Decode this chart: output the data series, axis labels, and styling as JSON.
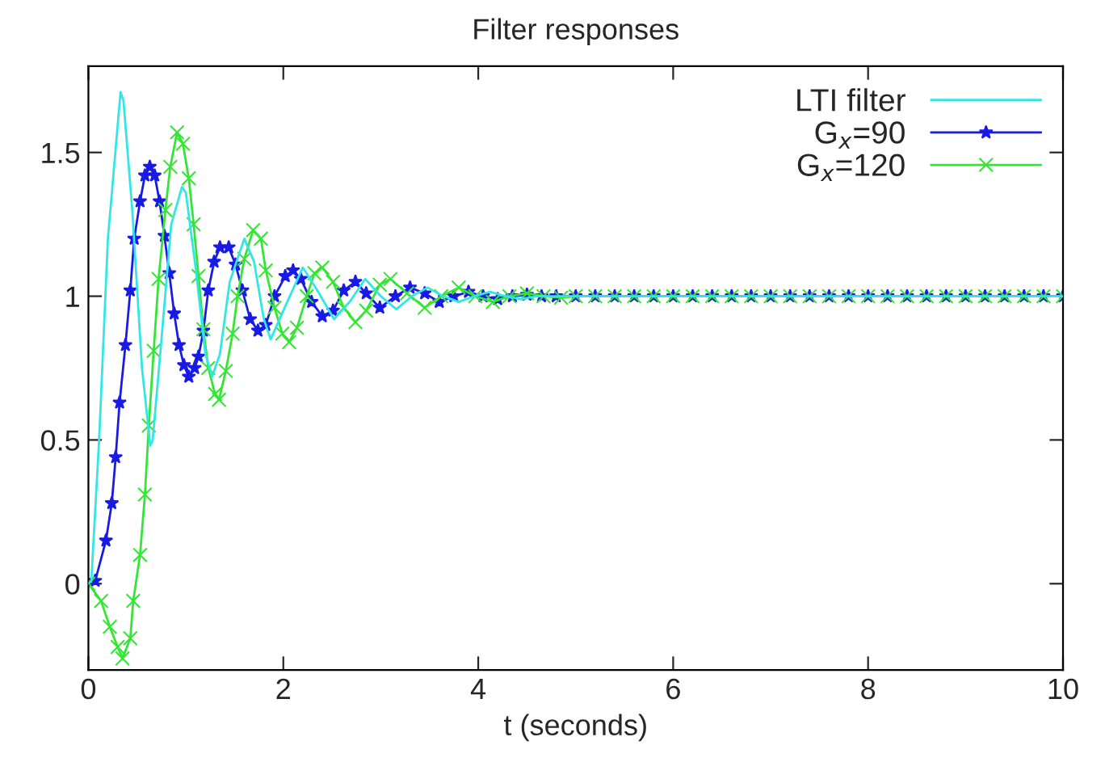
{
  "chart_data": {
    "type": "line",
    "title": "Filter responses",
    "xlabel": "t (seconds)",
    "xlim": [
      0,
      10
    ],
    "xticks": [
      0,
      2,
      4,
      6,
      8,
      10
    ],
    "ylim": [
      -0.3,
      1.8
    ],
    "yticks": [
      0,
      0.5,
      1,
      1.5
    ],
    "grid": false,
    "legend": "top right",
    "series": [
      {
        "name": "LTI filter",
        "color": "#33e6e6",
        "marker": "none",
        "x": [
          0,
          0.03,
          0.11,
          0.2,
          0.33,
          0.36,
          0.45,
          0.55,
          0.635,
          0.66,
          0.75,
          0.85,
          0.96,
          1.0,
          1.1,
          1.2,
          1.27,
          1.35,
          1.45,
          1.6,
          1.7,
          1.8,
          1.87,
          2.0,
          2.2,
          2.35,
          2.52,
          2.68,
          2.84,
          3.0,
          3.16,
          3.32,
          3.48,
          3.64,
          3.8,
          3.96,
          4.12,
          4.28,
          4.44,
          4.6,
          5,
          6,
          7,
          8,
          9,
          10
        ],
        "values": [
          0,
          0.01,
          0.5,
          1.2,
          1.71,
          1.68,
          1.3,
          0.75,
          0.48,
          0.5,
          0.85,
          1.25,
          1.38,
          1.36,
          1.1,
          0.8,
          0.72,
          0.8,
          1.05,
          1.2,
          1.12,
          0.92,
          0.85,
          0.95,
          1.1,
          1.02,
          0.92,
          0.98,
          1.06,
          1.0,
          0.955,
          1.0,
          1.03,
          1.0,
          0.98,
          1.0,
          1.015,
          1.0,
          0.99,
          1.0,
          1.0,
          1.0,
          1.0,
          1.0,
          1.0,
          1.0
        ]
      },
      {
        "name": "G$_{x}$=90",
        "color": "#1a1ae6",
        "marker": "star",
        "x": [
          0.07,
          0.18,
          0.24,
          0.28,
          0.32,
          0.38,
          0.43,
          0.47,
          0.53,
          0.58,
          0.63,
          0.68,
          0.73,
          0.78,
          0.83,
          0.88,
          0.93,
          0.98,
          1.03,
          1.09,
          1.13,
          1.18,
          1.23,
          1.29,
          1.35,
          1.44,
          1.51,
          1.58,
          1.66,
          1.74,
          1.82,
          1.91,
          2.02,
          2.1,
          2.18,
          2.29,
          2.4,
          2.51,
          2.62,
          2.74,
          2.85,
          2.99,
          3.15,
          3.3,
          3.45,
          3.6,
          3.75,
          3.9,
          4.05,
          4.2,
          4.35,
          4.5,
          4.65,
          4.8,
          5.0,
          5.2,
          5.4,
          5.6,
          5.8,
          6.0,
          6.2,
          6.4,
          6.6,
          6.8,
          7.0,
          7.2,
          7.4,
          7.6,
          7.8,
          8.0,
          8.2,
          8.4,
          8.6,
          8.8,
          9.0,
          9.2,
          9.4,
          9.6,
          9.8,
          10.0
        ],
        "values": [
          0.01,
          0.15,
          0.28,
          0.44,
          0.63,
          0.83,
          1.02,
          1.2,
          1.33,
          1.42,
          1.45,
          1.42,
          1.33,
          1.21,
          1.08,
          0.94,
          0.83,
          0.76,
          0.72,
          0.75,
          0.79,
          0.88,
          1.02,
          1.12,
          1.17,
          1.17,
          1.11,
          1.02,
          0.92,
          0.88,
          0.9,
          1.0,
          1.07,
          1.09,
          1.06,
          0.98,
          0.93,
          0.95,
          1.02,
          1.05,
          1.01,
          0.96,
          1.0,
          1.03,
          1.01,
          0.98,
          1.0,
          1.015,
          1.0,
          0.99,
          1.0,
          1.005,
          1.0,
          1.0,
          1.0,
          1.0,
          1.0,
          1.0,
          1.0,
          1.0,
          1.0,
          1.0,
          1.0,
          1.0,
          1.0,
          1.0,
          1.0,
          1.0,
          1.0,
          1.0,
          1.0,
          1.0,
          1.0,
          1.0,
          1.0,
          1.0,
          1.0,
          1.0,
          1.0,
          1.0
        ]
      },
      {
        "name": "G$_{x}$=120",
        "color": "#33e633",
        "marker": "cross",
        "x": [
          0,
          0.13,
          0.22,
          0.3,
          0.35,
          0.43,
          0.46,
          0.53,
          0.58,
          0.62,
          0.67,
          0.72,
          0.79,
          0.84,
          0.91,
          0.97,
          1.03,
          1.08,
          1.13,
          1.18,
          1.23,
          1.3,
          1.34,
          1.41,
          1.48,
          1.53,
          1.6,
          1.69,
          1.77,
          1.82,
          1.91,
          1.99,
          2.06,
          2.14,
          2.24,
          2.32,
          2.4,
          2.51,
          2.62,
          2.74,
          2.85,
          2.99,
          3.1,
          3.27,
          3.45,
          3.62,
          3.8,
          3.97,
          4.15,
          4.32,
          4.5,
          4.67,
          4.85,
          5.0,
          5.2,
          5.4,
          5.6,
          5.8,
          6.0,
          6.2,
          6.4,
          6.6,
          6.8,
          7.0,
          7.2,
          7.4,
          7.6,
          7.8,
          8.0,
          8.2,
          8.4,
          8.6,
          8.8,
          9.0,
          9.2,
          9.4,
          9.6,
          9.8,
          10.0
        ],
        "values": [
          0,
          -0.06,
          -0.15,
          -0.22,
          -0.26,
          -0.19,
          -0.06,
          0.1,
          0.31,
          0.55,
          0.81,
          1.06,
          1.3,
          1.45,
          1.57,
          1.53,
          1.41,
          1.25,
          1.07,
          0.885,
          0.75,
          0.66,
          0.64,
          0.74,
          0.87,
          1.0,
          1.13,
          1.23,
          1.2,
          1.09,
          0.96,
          0.87,
          0.84,
          0.89,
          1.0,
          1.08,
          1.1,
          1.05,
          0.96,
          0.91,
          0.95,
          1.04,
          1.06,
          1.01,
          0.96,
          1.0,
          1.03,
          1.0,
          0.98,
          1.0,
          1.01,
          1.0,
          0.995,
          1.0,
          1.0,
          1.0,
          1.0,
          1.0,
          1.0,
          1.0,
          1.0,
          1.0,
          1.0,
          1.0,
          1.0,
          1.0,
          1.0,
          1.0,
          1.0,
          1.0,
          1.0,
          1.0,
          1.0,
          1.0,
          1.0,
          1.0,
          1.0,
          1.0,
          1.0
        ]
      }
    ]
  }
}
